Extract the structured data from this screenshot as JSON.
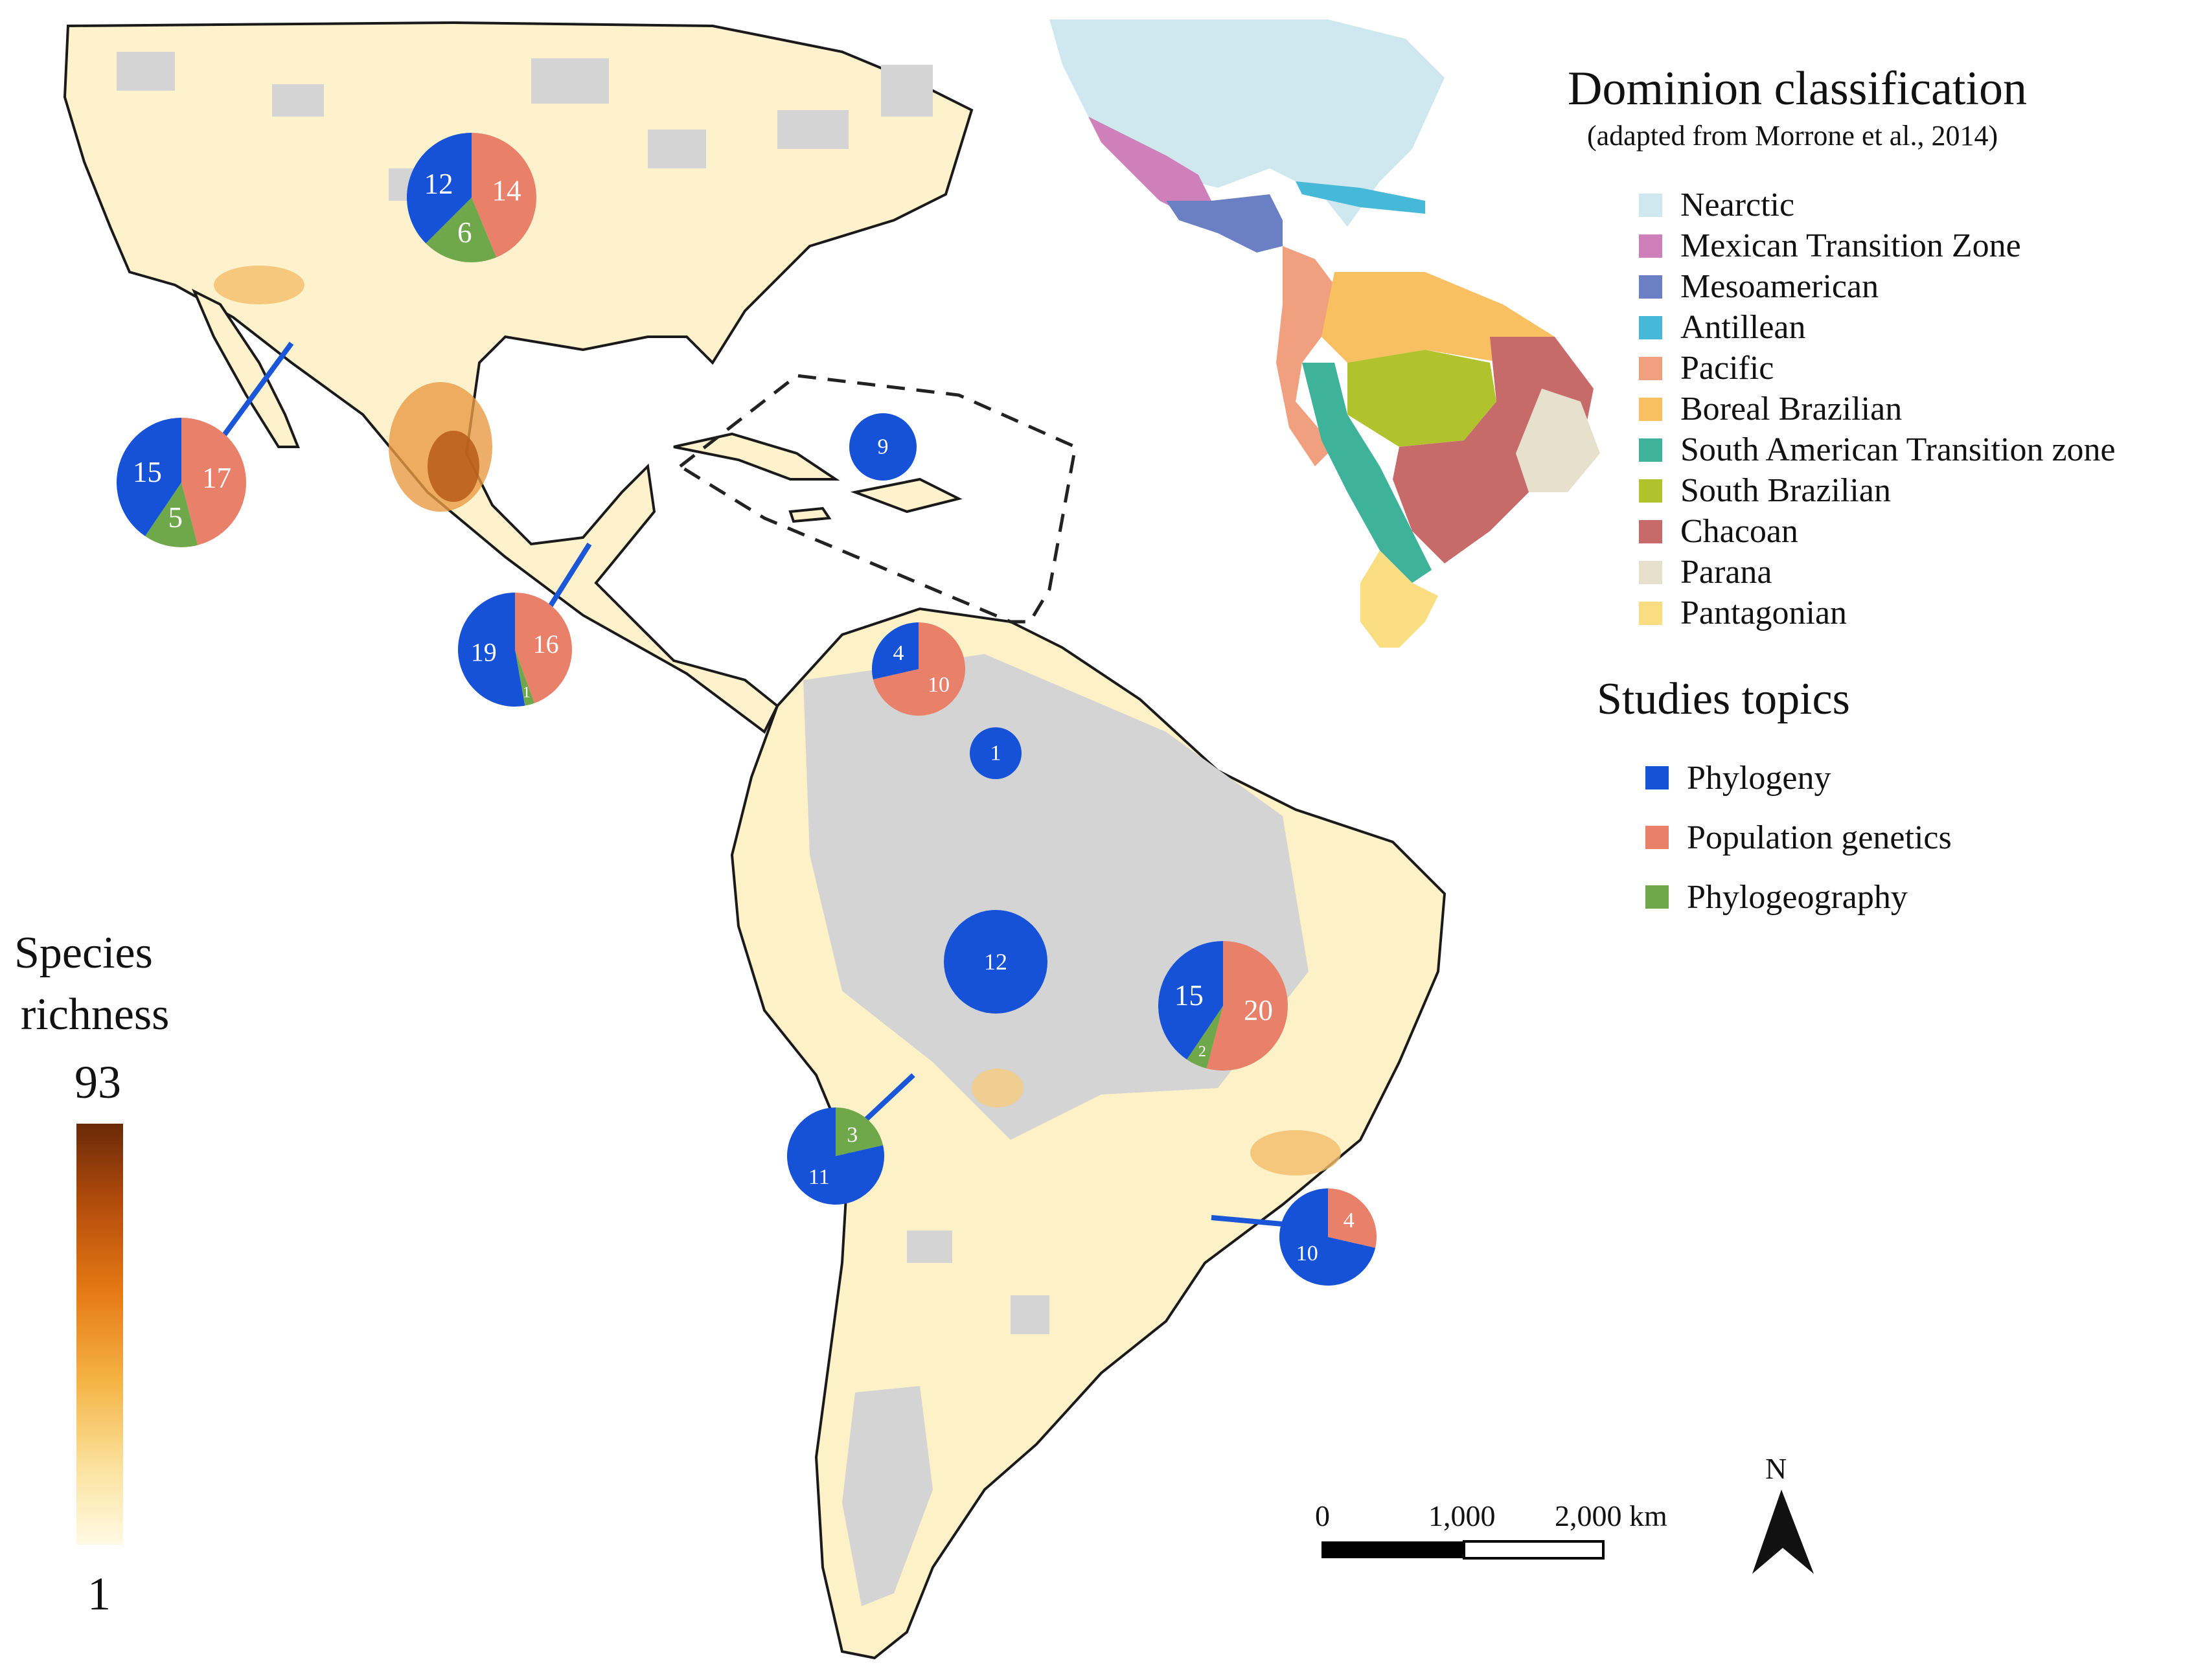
{
  "legend_dominion": {
    "title": "Dominion classification",
    "subtitle": "(adapted from Morrone et al., 2014)",
    "items": [
      {
        "label": "Nearctic",
        "color": "#cfe8f0"
      },
      {
        "label": "Mexican Transition Zone",
        "color": "#cf7fba"
      },
      {
        "label": "Mesoamerican",
        "color": "#6b7fc4"
      },
      {
        "label": "Antillean",
        "color": "#46b9d8"
      },
      {
        "label": "Pacific",
        "color": "#f0a07e"
      },
      {
        "label": "Boreal Brazilian",
        "color": "#f8c060"
      },
      {
        "label": "South American Transition zone",
        "color": "#3eb39a"
      },
      {
        "label": "South Brazilian",
        "color": "#b0c32c"
      },
      {
        "label": "Chacoan",
        "color": "#c66a6a"
      },
      {
        "label": "Parana",
        "color": "#e7e0cc"
      },
      {
        "label": "Pantagonian",
        "color": "#f9dd80"
      }
    ]
  },
  "legend_topics": {
    "title": "Studies topics",
    "items": [
      {
        "label": "Phylogeny",
        "color": "#1652d8"
      },
      {
        "label": "Population genetics",
        "color": "#e8806a"
      },
      {
        "label": "Phylogeography",
        "color": "#6fa84a"
      }
    ]
  },
  "species_richness": {
    "title_line1": "Species",
    "title_line2": "richness",
    "max": "93",
    "min": "1"
  },
  "scale_bar": {
    "labels": [
      "0",
      "1,000",
      "2,000 km"
    ]
  },
  "north_arrow": {
    "label": "N"
  },
  "pies": [
    {
      "region": "nearctic",
      "phylogeny": 12,
      "population_genetics": 14,
      "phylogeography": 6
    },
    {
      "region": "mexican-transition-zone",
      "phylogeny": 15,
      "population_genetics": 17,
      "phylogeography": 5
    },
    {
      "region": "mesoamerican",
      "phylogeny": 19,
      "population_genetics": 16,
      "phylogeography": 1
    },
    {
      "region": "antillean",
      "phylogeny": 9,
      "population_genetics": 0,
      "phylogeography": 0
    },
    {
      "region": "pacific",
      "phylogeny": 4,
      "population_genetics": 10,
      "phylogeography": 0
    },
    {
      "region": "boreal-brazilian",
      "phylogeny": 1,
      "population_genetics": 0,
      "phylogeography": 0
    },
    {
      "region": "south-brazilian",
      "phylogeny": 12,
      "population_genetics": 0,
      "phylogeography": 0
    },
    {
      "region": "chacoan",
      "phylogeny": 15,
      "population_genetics": 20,
      "phylogeography": 2
    },
    {
      "region": "south-american-transition-zone",
      "phylogeny": 11,
      "population_genetics": 0,
      "phylogeography": 3
    },
    {
      "region": "parana",
      "phylogeny": 10,
      "population_genetics": 4,
      "phylogeography": 0
    }
  ]
}
